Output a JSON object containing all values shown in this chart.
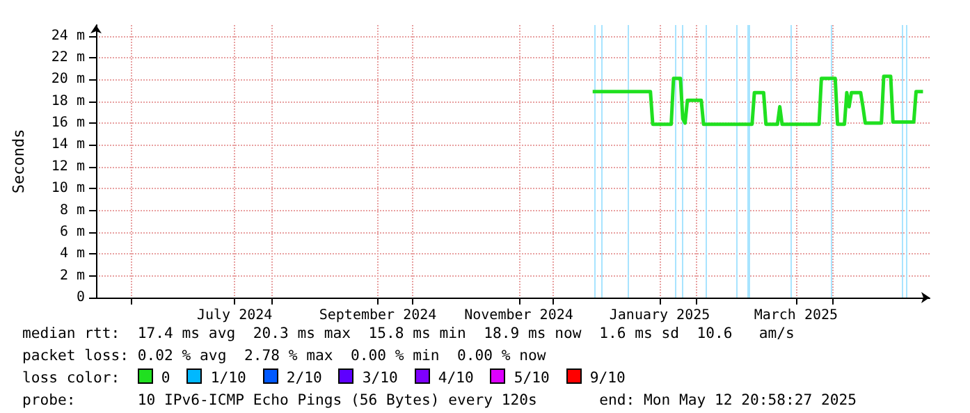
{
  "chart_data": {
    "type": "line",
    "ylabel": "Seconds",
    "x": [
      "2024-12-18",
      "2025-01-12",
      "2025-01-13",
      "2025-01-21",
      "2025-01-22",
      "2025-01-25",
      "2025-01-26",
      "2025-01-27",
      "2025-01-28",
      "2025-02-03",
      "2025-02-04",
      "2025-02-25",
      "2025-02-26",
      "2025-03-02",
      "2025-03-03",
      "2025-03-08",
      "2025-03-09",
      "2025-03-10",
      "2025-03-26",
      "2025-03-27",
      "2025-04-02",
      "2025-04-03",
      "2025-04-06",
      "2025-04-07",
      "2025-04-08",
      "2025-04-09",
      "2025-04-13",
      "2025-04-14",
      "2025-04-15",
      "2025-04-22",
      "2025-04-23",
      "2025-04-26",
      "2025-04-27",
      "2025-05-06",
      "2025-05-07",
      "2025-05-10"
    ],
    "series": [
      {
        "name": "0",
        "color": "#20e020",
        "values": [
          18.9,
          18.9,
          15.9,
          15.9,
          20.1,
          20.1,
          16.4,
          16.0,
          18.1,
          18.1,
          15.9,
          15.9,
          18.8,
          18.8,
          15.9,
          15.9,
          17.5,
          15.9,
          15.9,
          20.1,
          20.1,
          15.9,
          15.9,
          18.8,
          17.5,
          18.8,
          18.8,
          17.5,
          16.0,
          16.0,
          20.3,
          20.3,
          16.1,
          16.1,
          18.9,
          18.9
        ]
      },
      {
        "name": "1/10",
        "color": "#00b8ff",
        "values": [
          null,
          null,
          null,
          null,
          null,
          null,
          null,
          null,
          null,
          null,
          null,
          null,
          null,
          null,
          null,
          null,
          null,
          null,
          null,
          null,
          null,
          null,
          null,
          null,
          null,
          null,
          null,
          null,
          null,
          null,
          null,
          null,
          null,
          null,
          null,
          null
        ]
      },
      {
        "name": "2/10",
        "color": "#0059ff",
        "values": [
          null,
          null,
          null,
          null,
          null,
          null,
          null,
          null,
          null,
          null,
          null,
          null,
          null,
          null,
          null,
          null,
          null,
          null,
          null,
          null,
          null,
          null,
          null,
          null,
          null,
          null,
          null,
          null,
          null,
          null,
          null,
          null,
          null,
          null,
          null,
          null
        ]
      },
      {
        "name": "3/10",
        "color": "#5e00ff",
        "values": [
          null,
          null,
          null,
          null,
          null,
          null,
          null,
          null,
          null,
          null,
          null,
          null,
          null,
          null,
          null,
          null,
          null,
          null,
          null,
          null,
          null,
          null,
          null,
          null,
          null,
          null,
          null,
          null,
          null,
          null,
          null,
          null,
          null,
          null,
          null,
          null
        ]
      },
      {
        "name": "4/10",
        "color": "#7e00ff",
        "values": [
          null,
          null,
          null,
          null,
          null,
          null,
          null,
          null,
          null,
          null,
          null,
          null,
          null,
          null,
          null,
          null,
          null,
          null,
          null,
          null,
          null,
          null,
          null,
          null,
          null,
          null,
          null,
          null,
          null,
          null,
          null,
          null,
          null,
          null,
          null,
          null
        ]
      },
      {
        "name": "5/10",
        "color": "#dd00ff",
        "values": [
          null,
          null,
          null,
          null,
          null,
          null,
          null,
          null,
          null,
          null,
          null,
          null,
          null,
          null,
          null,
          null,
          null,
          null,
          null,
          null,
          null,
          null,
          null,
          null,
          null,
          null,
          null,
          null,
          null,
          null,
          null,
          null,
          null,
          null,
          null,
          null
        ]
      },
      {
        "name": "9/10",
        "color": "#ff0000",
        "values": [
          null,
          null,
          null,
          null,
          null,
          null,
          null,
          null,
          null,
          null,
          null,
          null,
          null,
          null,
          null,
          null,
          null,
          null,
          null,
          null,
          null,
          null,
          null,
          null,
          null,
          null,
          null,
          null,
          null,
          null,
          null,
          null,
          null,
          null,
          null,
          null
        ]
      }
    ],
    "xlim": [
      "2024-05-17",
      "2025-05-12T20:58"
    ],
    "xticks": [
      {
        "value": "2024-06-01",
        "label": null
      },
      {
        "value": "2024-07-16",
        "label": "July 2024"
      },
      {
        "value": "2024-08-01",
        "label": null
      },
      {
        "value": "2024-09-16",
        "label": "September 2024"
      },
      {
        "value": "2024-10-01",
        "label": null
      },
      {
        "value": "2024-11-16",
        "label": "November 2024"
      },
      {
        "value": "2024-12-01",
        "label": null
      },
      {
        "value": "2025-01-16",
        "label": "January 2025"
      },
      {
        "value": "2025-02-01",
        "label": null
      },
      {
        "value": "2025-03-16",
        "label": "March 2025"
      },
      {
        "value": "2025-04-01",
        "label": null
      }
    ],
    "ylim": [
      0,
      25
    ],
    "yticks": [
      0,
      {
        "value": 2,
        "label": "2 m"
      },
      {
        "value": 4,
        "label": "4 m"
      },
      {
        "value": 6,
        "label": "6 m"
      },
      {
        "value": 8,
        "label": "8 m"
      },
      {
        "value": 10,
        "label": "10 m"
      },
      {
        "value": 12,
        "label": "12 m"
      },
      {
        "value": 14,
        "label": "14 m"
      },
      {
        "value": 16,
        "label": "16 m"
      },
      {
        "value": 18,
        "label": "18 m"
      },
      {
        "value": 20,
        "label": "20 m"
      },
      {
        "value": 22,
        "label": "22 m"
      },
      {
        "value": 24,
        "label": "24 m"
      }
    ],
    "ref_lines": [
      {
        "axis": "x",
        "value": "2024-12-19",
        "color": "#a8e4ff"
      },
      {
        "axis": "x",
        "value": "2024-12-22",
        "color": "#a8e4ff"
      },
      {
        "axis": "x",
        "value": "2025-01-02",
        "color": "#a8e4ff"
      },
      {
        "axis": "x",
        "value": "2025-01-23",
        "color": "#a8e4ff"
      },
      {
        "axis": "x",
        "value": "2025-01-26",
        "color": "#a8e4ff"
      },
      {
        "axis": "x",
        "value": "2025-02-05",
        "color": "#a8e4ff"
      },
      {
        "axis": "x",
        "value": "2025-02-18",
        "color": "#a8e4ff"
      },
      {
        "axis": "x",
        "value": "2025-02-23",
        "color": "#a8e4ff"
      },
      {
        "axis": "x",
        "value": "2025-02-24",
        "color": "#a8e4ff"
      },
      {
        "axis": "x",
        "value": "2025-03-14",
        "color": "#a8e4ff"
      },
      {
        "axis": "x",
        "value": "2025-03-31",
        "color": "#a8e4ff"
      },
      {
        "axis": "x",
        "value": "2025-05-01",
        "color": "#a8e4ff"
      },
      {
        "axis": "x",
        "value": "2025-05-03",
        "color": "#a8e4ff"
      }
    ],
    "legend_title": "loss color:",
    "legend": "bottom",
    "grid": true,
    "marker": "none",
    "annotations": [
      "median rtt:  17.4 ms avg  20.3 ms max  15.8 ms min  18.9 ms now  1.6 ms sd  10.6   am/s",
      "packet loss: 0.02 % avg  2.78 % max  0.00 % min  0.00 % now",
      "probe:       10 IPv6-ICMP Echo Pings (56 Bytes) every 120s       end: Mon May 12 20:58:27 2025"
    ]
  }
}
